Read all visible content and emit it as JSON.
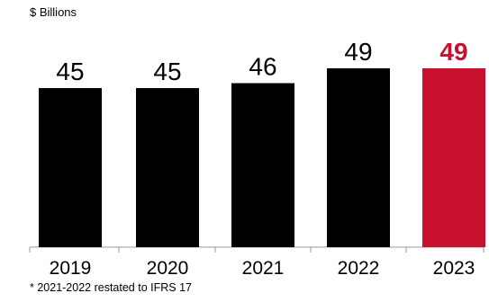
{
  "unit_label": "$ Billions",
  "footnote": "* 2021-2022 restated to IFRS 17",
  "chart_data": {
    "type": "bar",
    "title": "",
    "xlabel": "",
    "ylabel": "$ Billions",
    "categories": [
      "2019",
      "2020",
      "2021",
      "2022",
      "2023"
    ],
    "values": [
      45,
      45,
      46,
      49,
      49
    ],
    "data_labels": [
      "45",
      "45",
      "46",
      "49",
      "49"
    ],
    "bar_colors": [
      "#000000",
      "#000000",
      "#000000",
      "#000000",
      "#c8102e"
    ],
    "label_colors": [
      "#000000",
      "#000000",
      "#000000",
      "#000000",
      "#c8102e"
    ],
    "highlight_index": 4,
    "axis_color": "#9a9a9a",
    "grid": false,
    "legend": "none"
  }
}
